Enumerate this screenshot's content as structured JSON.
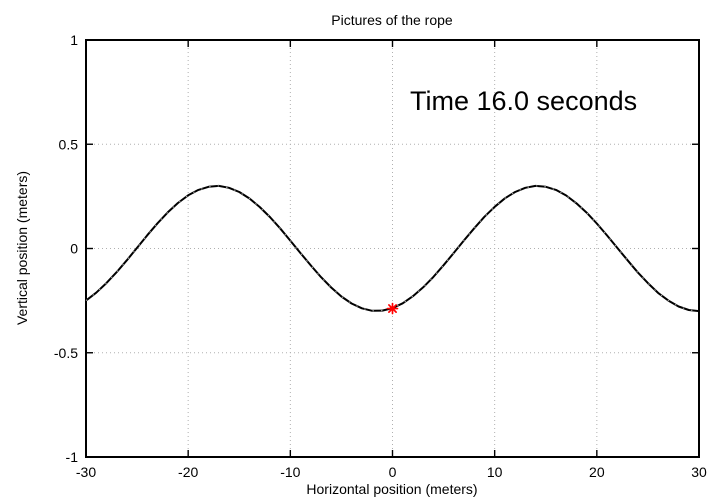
{
  "figure": {
    "background": "#ffffff",
    "border_color": "#000000",
    "grid_color": "#b0b0b0"
  },
  "title": "Pictures of the rope",
  "annotation": {
    "text": "Time 16.0 seconds"
  },
  "axes": {
    "xlabel": "Horizontal position (meters)",
    "ylabel": "Vertical position (meters)"
  },
  "chart_data": {
    "type": "line",
    "title": "Pictures of the rope",
    "xlabel": "Horizontal position (meters)",
    "ylabel": "Vertical position (meters)",
    "xlim": [
      -30,
      30
    ],
    "ylim": [
      -1,
      1
    ],
    "x_ticks": [
      -30,
      -20,
      -10,
      0,
      10,
      20,
      30
    ],
    "x_tick_labels": [
      "-30",
      "-20",
      "-10",
      "0",
      "10",
      "20",
      "30"
    ],
    "y_ticks": [
      -1,
      -0.5,
      0,
      0.5,
      1
    ],
    "y_tick_labels": [
      "-1",
      "-0.5",
      "0",
      "0.5",
      "1"
    ],
    "grid": true,
    "legend_position": "none",
    "annotation": {
      "text": "Time 16.0 seconds",
      "x": 1.7,
      "y": 0.67
    },
    "series": [
      {
        "name": "rope",
        "type": "line",
        "color": "#000000",
        "x": [
          -30,
          -29,
          -28,
          -27,
          -26,
          -25,
          -24,
          -23,
          -22,
          -21,
          -20,
          -19,
          -18,
          -17,
          -16,
          -15,
          -14,
          -13,
          -12,
          -11,
          -10,
          -9,
          -8,
          -7,
          -6,
          -5,
          -4,
          -3,
          -2,
          -1,
          0,
          1,
          2,
          3,
          4,
          5,
          6,
          7,
          8,
          9,
          10,
          11,
          12,
          13,
          14,
          15,
          16,
          17,
          18,
          19,
          20,
          21,
          22,
          23,
          24,
          25,
          26,
          27,
          28,
          29,
          30
        ],
        "y": [
          -0.25,
          -0.212,
          -0.166,
          -0.113,
          -0.056,
          0.004,
          0.064,
          0.121,
          0.173,
          0.218,
          0.255,
          0.281,
          0.296,
          0.3,
          0.291,
          0.271,
          0.24,
          0.199,
          0.151,
          0.097,
          0.038,
          -0.022,
          -0.081,
          -0.137,
          -0.187,
          -0.23,
          -0.264,
          -0.287,
          -0.299,
          -0.298,
          -0.286,
          -0.263,
          -0.229,
          -0.186,
          -0.136,
          -0.08,
          -0.021,
          0.039,
          0.097,
          0.152,
          0.2,
          0.241,
          0.271,
          0.291,
          0.3,
          0.296,
          0.281,
          0.254,
          0.217,
          0.172,
          0.12,
          0.063,
          0.003,
          -0.056,
          -0.114,
          -0.166,
          -0.213,
          -0.25,
          -0.278,
          -0.295,
          -0.3
        ]
      },
      {
        "name": "marked-point",
        "type": "scatter",
        "marker": "asterisk",
        "color": "#ff0000",
        "x": [
          0
        ],
        "y": [
          -0.288
        ]
      }
    ]
  }
}
